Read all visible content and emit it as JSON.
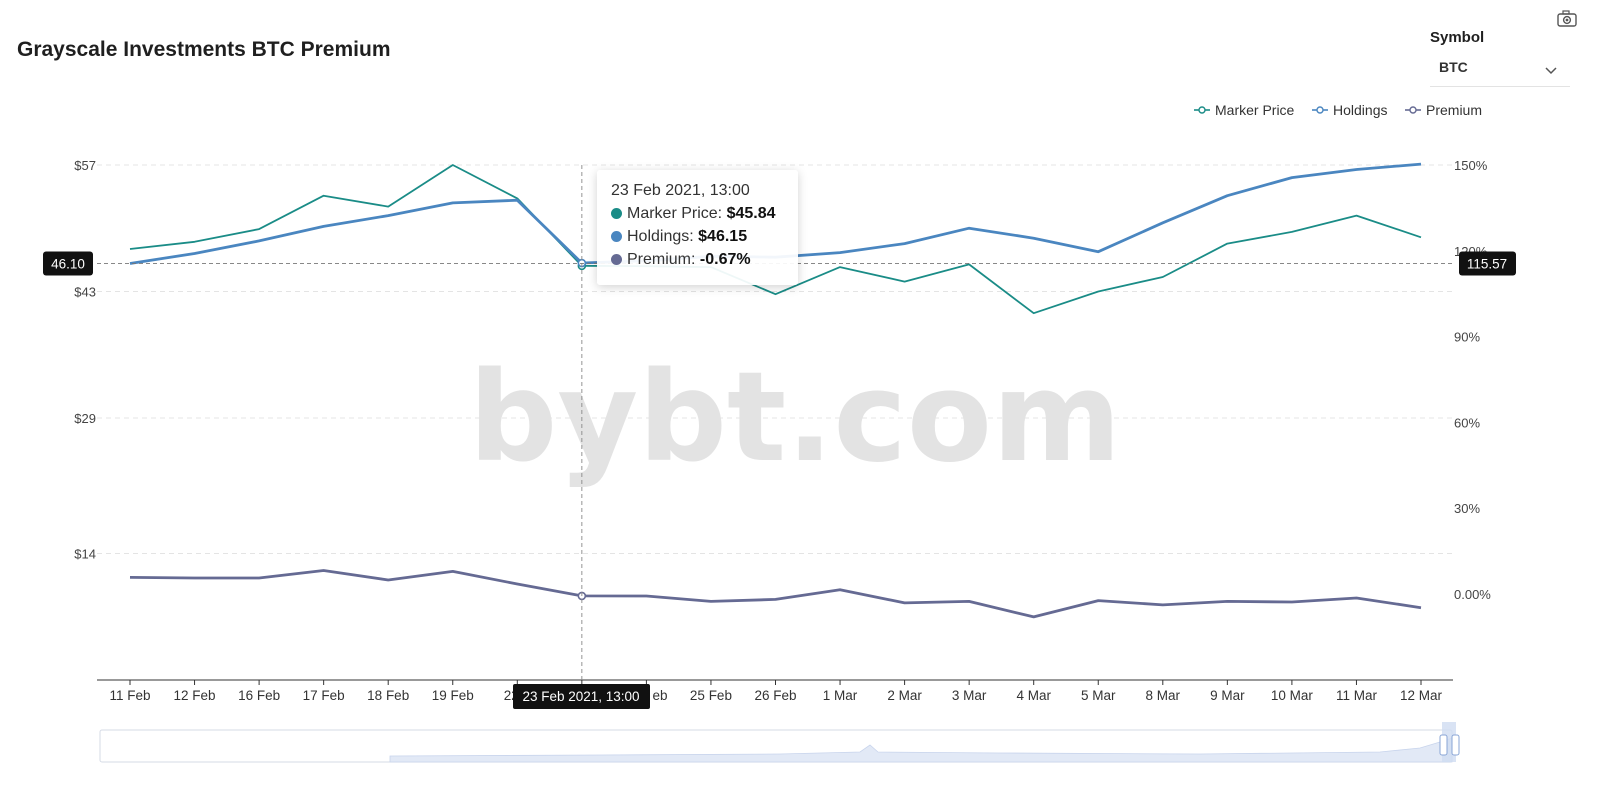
{
  "header": {
    "title": "Grayscale Investments BTC Premium"
  },
  "symbol": {
    "label": "Symbol",
    "value": "BTC"
  },
  "icons": {
    "camera": "camera-icon",
    "dropdown": "chevron-down-icon"
  },
  "watermark": "bybt.com",
  "colors": {
    "marker": "#1a8c87",
    "holdings": "#4a86c0",
    "premium": "#656a93"
  },
  "chart_data": {
    "type": "line",
    "categories": [
      "11 Feb",
      "12 Feb",
      "16 Feb",
      "17 Feb",
      "18 Feb",
      "19 Feb",
      "22 Feb",
      "23 Feb",
      "24 Feb",
      "25 Feb",
      "26 Feb",
      "1 Mar",
      "2 Mar",
      "3 Mar",
      "4 Mar",
      "5 Mar",
      "8 Mar",
      "9 Mar",
      "10 Mar",
      "11 Mar",
      "12 Mar"
    ],
    "x_tick_labels": [
      "11 Feb",
      "12 Feb",
      "16 Feb",
      "17 Feb",
      "18 Feb",
      "19 Feb",
      "22",
      "",
      "eb",
      "25 Feb",
      "26 Feb",
      "1 Mar",
      "2 Mar",
      "3 Mar",
      "4 Mar",
      "5 Mar",
      "8 Mar",
      "9 Mar",
      "10 Mar",
      "11 Mar",
      "12 Mar"
    ],
    "series": [
      {
        "name": "Marker Price",
        "axis": "left",
        "values": [
          47.7,
          48.5,
          49.9,
          53.6,
          52.4,
          57.0,
          53.3,
          45.84,
          45.8,
          45.7,
          42.7,
          45.7,
          44.1,
          46.0,
          40.6,
          43.0,
          44.6,
          48.3,
          49.6,
          51.4,
          49.0
        ]
      },
      {
        "name": "Holdings",
        "axis": "left",
        "values": [
          46.1,
          47.2,
          48.6,
          50.2,
          51.4,
          52.8,
          53.1,
          46.15,
          46.4,
          46.9,
          46.8,
          47.3,
          48.3,
          50.0,
          48.9,
          47.4,
          50.6,
          53.6,
          55.6,
          56.5,
          57.1
        ]
      },
      {
        "name": "Premium",
        "axis": "right",
        "values": [
          5.8,
          5.6,
          5.6,
          8.2,
          4.9,
          7.9,
          3.5,
          -0.67,
          -0.7,
          -2.6,
          -1.9,
          1.5,
          -3.1,
          -2.6,
          -8.0,
          -2.3,
          -3.8,
          -2.6,
          -2.8,
          -1.4,
          -4.8
        ]
      }
    ],
    "y_left": {
      "ticks": [
        "$57",
        "$43",
        "$29",
        "$14"
      ],
      "tick_values": [
        57,
        43,
        29,
        14
      ],
      "range": [
        0,
        57
      ]
    },
    "y_right": {
      "ticks": [
        "150%",
        "120%",
        "90%",
        "60%",
        "30%",
        "0.00%"
      ],
      "tick_values": [
        150,
        120,
        90,
        60,
        30,
        0
      ],
      "range": [
        -30,
        150
      ]
    },
    "legend": {
      "items": [
        "Marker Price",
        "Holdings",
        "Premium"
      ],
      "position": "top-right"
    },
    "crosshair": {
      "x_label": "23 Feb 2021, 13:00",
      "y_left_label": "46.10",
      "y_right_label": "115.57",
      "index": 7
    },
    "tooltip": {
      "title": "23 Feb 2021, 13:00",
      "rows": [
        {
          "label": "Marker Price:",
          "value": "$45.84"
        },
        {
          "label": "Holdings:",
          "value": "$46.15"
        },
        {
          "label": "Premium:",
          "value": "-0.67%"
        }
      ]
    },
    "grid": true
  }
}
